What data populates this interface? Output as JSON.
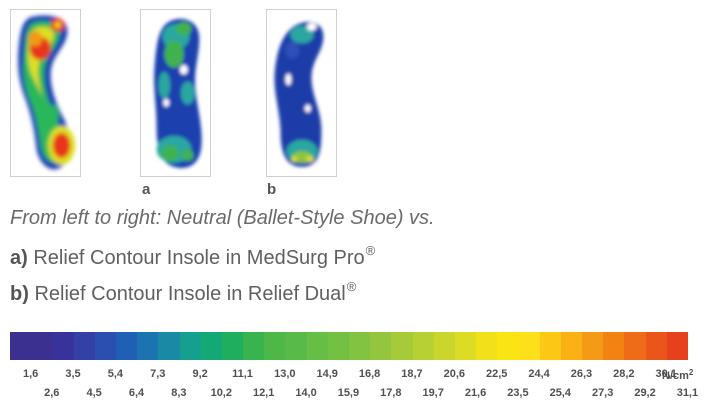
{
  "panels": [
    {
      "id": "neutral",
      "label": ""
    },
    {
      "id": "a",
      "label": "a"
    },
    {
      "id": "b",
      "label": "b"
    }
  ],
  "caption": {
    "intro": "From left to right: Neutral (Ballet-Style Shoe) vs.",
    "line_a_prefix": "a)",
    "line_a_text": "Relief Contour Insole in MedSurg Pro",
    "line_b_prefix": "b)",
    "line_b_text": "Relief Contour Insole in Relief Dual",
    "registered_mark": "®"
  },
  "scale": {
    "unit_main": "N/cm",
    "unit_sup": "2",
    "labels_top": [
      "1,6",
      "3,5",
      "5,4",
      "7,3",
      "9,2",
      "11,1",
      "13,0",
      "14,9",
      "16,8",
      "18,7",
      "20,6",
      "22,5",
      "24,4",
      "26,3",
      "28,2",
      "30,1"
    ],
    "labels_bottom": [
      "2,6",
      "4,5",
      "6,4",
      "8,3",
      "10,2",
      "12,1",
      "14,0",
      "15,9",
      "17,8",
      "19,7",
      "21,6",
      "23,5",
      "25,4",
      "27,3",
      "29,2",
      "31,1"
    ],
    "colors": [
      "#3b2f8f",
      "#3b2f8f",
      "#38339a",
      "#3340a6",
      "#2a4fb0",
      "#2060b4",
      "#1b74b0",
      "#188aa6",
      "#149f8e",
      "#14a877",
      "#1fae5e",
      "#39b34d",
      "#4db848",
      "#59bb47",
      "#66be44",
      "#74c043",
      "#82c341",
      "#93c63e",
      "#a5cb39",
      "#b7d033",
      "#cad62c",
      "#dddc24",
      "#f0e11b",
      "#fbe414",
      "#fde01a",
      "#fcc816",
      "#f9b114",
      "#f59a14",
      "#f28313",
      "#ee6c17",
      "#ea5519",
      "#e6401c"
    ]
  }
}
